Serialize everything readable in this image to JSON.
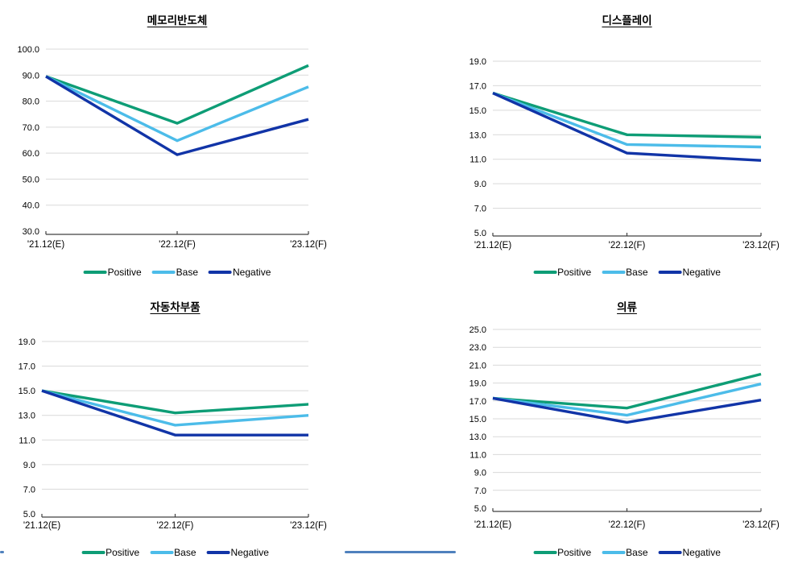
{
  "page": {
    "background": "#FFFFFF"
  },
  "colors": {
    "positive": "#0E9D76",
    "base": "#4CBCE9",
    "negative": "#1134A7",
    "gridline": "#D9D9D9",
    "axis": "#404040",
    "label_text": "#000000",
    "decor_line": "#4F81BD"
  },
  "chart_data": [
    {
      "type": "line",
      "title": "메모리반도체",
      "categories": [
        "'21.12(E)",
        "'22.12(F)",
        "'23.12(F)"
      ],
      "series": [
        {
          "name": "Positive",
          "color_key": "positive",
          "values": [
            89.5,
            71.5,
            93.7
          ]
        },
        {
          "name": "Base",
          "color_key": "base",
          "values": [
            89.5,
            64.8,
            85.5
          ]
        },
        {
          "name": "Negative",
          "color_key": "negative",
          "values": [
            89.5,
            59.4,
            73.0
          ]
        }
      ],
      "ylim": [
        30,
        100
      ],
      "ytick_step": 10,
      "ytick_labels": [
        "100.0",
        "90.0",
        "80.0",
        "70.0",
        "60.0",
        "50.0",
        "40.0",
        "30.0"
      ],
      "grid": true,
      "legend_position": "bottom"
    },
    {
      "type": "line",
      "title": "디스플레이",
      "categories": [
        "'21.12(E)",
        "'22.12(F)",
        "'23.12(F)"
      ],
      "series": [
        {
          "name": "Positive",
          "color_key": "positive",
          "values": [
            16.4,
            13.0,
            12.8
          ]
        },
        {
          "name": "Base",
          "color_key": "base",
          "values": [
            16.4,
            12.2,
            12.0
          ]
        },
        {
          "name": "Negative",
          "color_key": "negative",
          "values": [
            16.4,
            11.5,
            10.9
          ]
        }
      ],
      "ylim": [
        5,
        19
      ],
      "ytick_step": 2,
      "ytick_labels": [
        "19.0",
        "17.0",
        "15.0",
        "13.0",
        "11.0",
        "9.0",
        "7.0",
        "5.0"
      ],
      "grid": true,
      "legend_position": "bottom"
    },
    {
      "type": "line",
      "title": "자동차부품",
      "categories": [
        "'21.12(E)",
        "'22.12(F)",
        "'23.12(F)"
      ],
      "series": [
        {
          "name": "Positive",
          "color_key": "positive",
          "values": [
            15.0,
            13.2,
            13.9
          ]
        },
        {
          "name": "Base",
          "color_key": "base",
          "values": [
            15.0,
            12.2,
            13.0
          ]
        },
        {
          "name": "Negative",
          "color_key": "negative",
          "values": [
            15.0,
            11.4,
            11.4
          ]
        }
      ],
      "ylim": [
        5,
        19
      ],
      "ytick_step": 2,
      "ytick_labels": [
        "19.0",
        "17.0",
        "15.0",
        "13.0",
        "11.0",
        "9.0",
        "7.0",
        "5.0"
      ],
      "grid": true,
      "legend_position": "bottom"
    },
    {
      "type": "line",
      "title": "의류",
      "categories": [
        "'21.12(E)",
        "'22.12(F)",
        "'23.12(F)"
      ],
      "series": [
        {
          "name": "Positive",
          "color_key": "positive",
          "values": [
            17.3,
            16.2,
            20.0
          ]
        },
        {
          "name": "Base",
          "color_key": "base",
          "values": [
            17.3,
            15.4,
            18.9
          ]
        },
        {
          "name": "Negative",
          "color_key": "negative",
          "values": [
            17.3,
            14.6,
            17.1
          ]
        }
      ],
      "ylim": [
        5,
        25
      ],
      "ytick_step": 2,
      "ytick_labels": [
        "25.0",
        "23.0",
        "21.0",
        "19.0",
        "17.0",
        "15.0",
        "13.0",
        "11.0",
        "9.0",
        "7.0",
        "5.0"
      ],
      "grid": true,
      "legend_position": "bottom"
    }
  ]
}
